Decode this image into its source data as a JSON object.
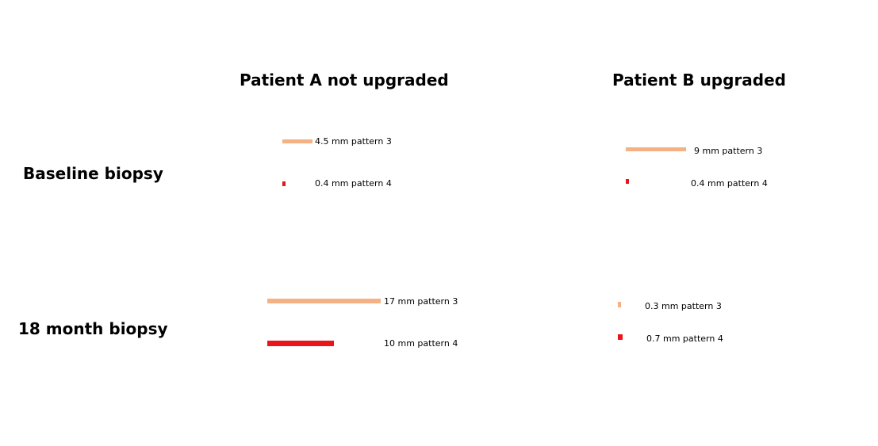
{
  "colors": {
    "pattern3": "#f4b183",
    "pattern4": "#e8161b"
  },
  "columns": {
    "patient_a": "Patient A not upgraded",
    "patient_b": "Patient B upgraded"
  },
  "rows": {
    "baseline": "Baseline biopsy",
    "month18": "18 month biopsy"
  },
  "cores": {
    "a_baseline": {
      "pattern3": {
        "length_mm": 4.5,
        "label": "4.5 mm pattern 3"
      },
      "pattern4": {
        "length_mm": 0.4,
        "label": "0.4 mm pattern 4"
      }
    },
    "b_baseline": {
      "pattern3": {
        "length_mm": 9,
        "label": "9 mm pattern 3"
      },
      "pattern4": {
        "length_mm": 0.4,
        "label": "0.4 mm pattern 4"
      }
    },
    "a_18month": {
      "pattern3": {
        "length_mm": 17,
        "label": "17 mm pattern 3"
      },
      "pattern4": {
        "length_mm": 10,
        "label": "10 mm pattern 4"
      }
    },
    "b_18month": {
      "pattern3": {
        "length_mm": 0.3,
        "label": "0.3 mm pattern 3"
      },
      "pattern4": {
        "length_mm": 0.7,
        "label": "0.7 mm pattern 4"
      }
    }
  }
}
